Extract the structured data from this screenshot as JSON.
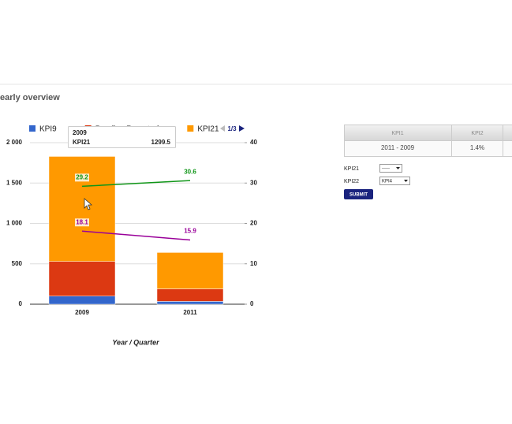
{
  "header": {
    "title": "early overview"
  },
  "chart_data": {
    "type": "bar_line",
    "categories": [
      "2009",
      "2011"
    ],
    "x_label": "Year / Quarter",
    "pager": "1/3",
    "series": [
      {
        "name": "KPI9",
        "color": "#3366cc",
        "values": [
          100,
          35
        ]
      },
      {
        "name": "Pending Reported",
        "color": "#dc3912",
        "values": [
          430,
          155
        ]
      },
      {
        "name": "KPI21",
        "color": "#ff9900",
        "values": [
          1299.5,
          450
        ]
      },
      {
        "type": "line",
        "axis": "y2",
        "color": "#109618",
        "values": [
          29.2,
          30.6
        ]
      },
      {
        "type": "line",
        "axis": "y2",
        "color": "#990099",
        "values": [
          18.1,
          15.9
        ]
      }
    ],
    "ylim": [
      0,
      2000
    ],
    "yticks": [
      0,
      500,
      {
        "value": 1000,
        "label": "1 000"
      },
      {
        "value": 1500,
        "label": "1 500"
      },
      {
        "value": 2000,
        "label": "2 000"
      }
    ],
    "y2lim": [
      0,
      40
    ],
    "y2ticks": [
      0,
      10,
      20,
      30,
      40
    ],
    "grid": true
  },
  "table": {
    "header": [
      "KPI1",
      "KPI2"
    ],
    "rows": [
      [
        "2011 - 2009",
        "1.4%"
      ]
    ]
  },
  "form": {
    "fields": [
      {
        "label": "KPI21",
        "value": "-----"
      },
      {
        "label": "KPI22",
        "value": "KPI4"
      }
    ],
    "button": "SUBMIT"
  }
}
